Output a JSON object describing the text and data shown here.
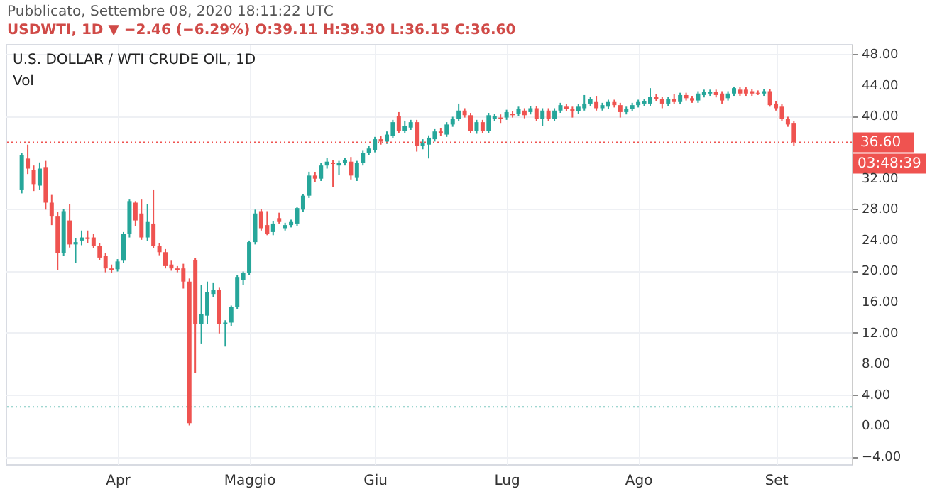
{
  "chart_data": {
    "type": "candlestick",
    "title": "U.S. DOLLAR / WTI CRUDE OIL, 1D",
    "subtitle": "USDWTI, 1D ▼ −2.46 (−6.29%) O:39.11 H:39.30 L:36.15 C:36.60",
    "annotations": [
      "Pubblicato, Settembre 08, 2020 18:11:22 UTC",
      "Vol",
      "03:48:39"
    ],
    "categories": [
      null,
      null,
      null,
      null,
      null,
      null,
      null,
      null,
      null,
      null,
      null,
      null,
      null,
      null,
      null,
      null,
      "Apr",
      null,
      null,
      null,
      null,
      null,
      null,
      null,
      null,
      null,
      null,
      null,
      null,
      null,
      null,
      null,
      null,
      null,
      null,
      null,
      null,
      null,
      "Maggio",
      null,
      null,
      null,
      null,
      null,
      null,
      null,
      null,
      null,
      null,
      null,
      null,
      null,
      null,
      null,
      null,
      null,
      null,
      null,
      null,
      "Giu",
      null,
      null,
      null,
      null,
      null,
      null,
      null,
      null,
      null,
      null,
      null,
      null,
      null,
      null,
      null,
      null,
      null,
      null,
      null,
      null,
      null,
      "Lug",
      null,
      null,
      null,
      null,
      null,
      null,
      null,
      null,
      null,
      null,
      null,
      null,
      null,
      null,
      null,
      null,
      null,
      null,
      null,
      null,
      null,
      "Ago",
      null,
      null,
      null,
      null,
      null,
      null,
      null,
      null,
      null,
      null,
      null,
      null,
      null,
      null,
      null,
      null,
      null,
      null,
      null,
      null,
      null,
      null,
      "Set",
      null,
      null,
      null
    ],
    "ohlc": [
      [
        30.5,
        35.2,
        30.0,
        34.9
      ],
      [
        34.5,
        36.3,
        32.5,
        33.2
      ],
      [
        33.0,
        33.6,
        30.3,
        31.2
      ],
      [
        31.0,
        34.0,
        30.5,
        33.2
      ],
      [
        33.4,
        34.2,
        27.9,
        28.8
      ],
      [
        28.8,
        29.8,
        25.9,
        27.0
      ],
      [
        27.0,
        27.6,
        20.1,
        22.3
      ],
      [
        22.3,
        28.0,
        21.9,
        27.7
      ],
      [
        26.5,
        28.6,
        23.0,
        23.4
      ],
      [
        23.4,
        24.2,
        21.0,
        23.7
      ],
      [
        23.9,
        25.2,
        23.3,
        24.3
      ],
      [
        24.3,
        25.2,
        23.6,
        24.1
      ],
      [
        24.3,
        24.8,
        22.9,
        23.2
      ],
      [
        23.2,
        23.6,
        21.4,
        21.7
      ],
      [
        21.9,
        22.3,
        19.8,
        20.3
      ],
      [
        20.3,
        20.8,
        19.7,
        20.1
      ],
      [
        20.2,
        21.5,
        19.9,
        21.2
      ],
      [
        21.3,
        25.0,
        21.0,
        24.8
      ],
      [
        24.8,
        29.2,
        24.3,
        29.0
      ],
      [
        28.8,
        29.0,
        25.8,
        26.5
      ],
      [
        27.4,
        29.2,
        24.0,
        24.3
      ],
      [
        24.3,
        28.6,
        23.8,
        26.3
      ],
      [
        26.1,
        30.5,
        22.9,
        23.2
      ],
      [
        23.2,
        23.6,
        22.0,
        22.4
      ],
      [
        22.4,
        22.8,
        20.3,
        20.6
      ],
      [
        20.8,
        21.3,
        20.0,
        20.3
      ],
      [
        20.3,
        20.6,
        19.8,
        20.1
      ],
      [
        20.3,
        20.9,
        17.7,
        18.6
      ],
      [
        18.6,
        19.0,
        0.0,
        0.3
      ],
      [
        21.4,
        21.6,
        6.8,
        13.1
      ],
      [
        13.1,
        18.2,
        10.6,
        14.4
      ],
      [
        14.2,
        18.6,
        13.1,
        17.2
      ],
      [
        17.0,
        18.4,
        16.6,
        17.5
      ],
      [
        17.5,
        17.8,
        11.9,
        13.1
      ],
      [
        13.1,
        13.6,
        10.2,
        13.3
      ],
      [
        13.3,
        15.5,
        12.8,
        15.3
      ],
      [
        15.3,
        19.4,
        15.0,
        19.2
      ],
      [
        18.8,
        19.9,
        18.2,
        19.7
      ],
      [
        19.7,
        23.9,
        19.4,
        23.7
      ],
      [
        23.7,
        27.9,
        23.4,
        27.4
      ],
      [
        27.7,
        28.0,
        25.2,
        25.5
      ],
      [
        25.9,
        27.7,
        24.6,
        24.8
      ],
      [
        25.0,
        26.4,
        24.6,
        26.1
      ],
      [
        26.8,
        27.5,
        26.1,
        26.3
      ],
      [
        25.5,
        26.2,
        25.2,
        25.9
      ],
      [
        25.9,
        26.6,
        25.6,
        26.3
      ],
      [
        26.1,
        28.3,
        25.8,
        28.1
      ],
      [
        27.9,
        29.9,
        27.6,
        29.7
      ],
      [
        29.7,
        32.8,
        29.4,
        32.3
      ],
      [
        32.3,
        32.7,
        31.5,
        31.9
      ],
      [
        31.9,
        33.9,
        31.6,
        33.6
      ],
      [
        33.6,
        34.6,
        33.2,
        34.1
      ],
      [
        33.9,
        34.3,
        30.8,
        33.8
      ],
      [
        33.6,
        34.2,
        32.4,
        33.9
      ],
      [
        33.9,
        34.6,
        33.6,
        34.3
      ],
      [
        34.1,
        34.7,
        31.8,
        32.3
      ],
      [
        32.0,
        34.2,
        31.6,
        33.9
      ],
      [
        33.9,
        35.5,
        33.6,
        35.2
      ],
      [
        35.2,
        36.1,
        34.9,
        35.8
      ],
      [
        35.6,
        37.3,
        35.3,
        37.0
      ],
      [
        37.0,
        37.4,
        36.3,
        36.7
      ],
      [
        36.7,
        38.0,
        36.4,
        37.6
      ],
      [
        37.4,
        39.5,
        37.1,
        39.2
      ],
      [
        40.0,
        40.5,
        37.8,
        38.1
      ],
      [
        38.1,
        39.4,
        37.8,
        38.7
      ],
      [
        38.5,
        39.5,
        38.2,
        39.2
      ],
      [
        39.2,
        39.5,
        35.4,
        36.1
      ],
      [
        36.1,
        37.0,
        35.7,
        36.5
      ],
      [
        36.3,
        37.5,
        34.5,
        37.2
      ],
      [
        37.0,
        38.3,
        36.7,
        38.0
      ],
      [
        38.0,
        38.4,
        37.4,
        37.8
      ],
      [
        37.6,
        39.2,
        37.3,
        38.9
      ],
      [
        38.9,
        39.9,
        38.6,
        39.6
      ],
      [
        39.6,
        41.6,
        39.3,
        40.7
      ],
      [
        40.7,
        41.0,
        39.8,
        40.1
      ],
      [
        40.1,
        40.4,
        37.8,
        38.1
      ],
      [
        38.1,
        39.5,
        37.7,
        39.2
      ],
      [
        39.2,
        39.5,
        37.8,
        38.1
      ],
      [
        38.1,
        40.4,
        37.8,
        40.1
      ],
      [
        39.6,
        40.3,
        39.3,
        40.0
      ],
      [
        39.8,
        40.2,
        39.1,
        39.6
      ],
      [
        39.8,
        40.8,
        39.5,
        40.5
      ],
      [
        40.3,
        40.6,
        39.8,
        40.1
      ],
      [
        40.3,
        41.2,
        40.0,
        40.9
      ],
      [
        40.7,
        41.0,
        39.7,
        40.1
      ],
      [
        40.5,
        41.3,
        40.2,
        41.0
      ],
      [
        41.0,
        41.3,
        39.3,
        39.6
      ],
      [
        39.6,
        41.0,
        38.7,
        40.7
      ],
      [
        40.7,
        41.0,
        39.3,
        39.6
      ],
      [
        39.6,
        41.0,
        39.3,
        40.7
      ],
      [
        40.7,
        41.7,
        40.4,
        41.4
      ],
      [
        41.2,
        41.5,
        40.6,
        40.9
      ],
      [
        40.9,
        41.2,
        39.8,
        40.6
      ],
      [
        40.6,
        41.5,
        40.3,
        41.2
      ],
      [
        41.0,
        42.7,
        40.7,
        41.6
      ],
      [
        41.6,
        42.5,
        41.3,
        42.2
      ],
      [
        41.8,
        42.6,
        40.7,
        41.0
      ],
      [
        41.0,
        41.7,
        40.7,
        41.4
      ],
      [
        41.2,
        42.1,
        40.9,
        41.8
      ],
      [
        41.8,
        42.1,
        41.1,
        41.4
      ],
      [
        41.4,
        41.7,
        39.8,
        40.5
      ],
      [
        40.5,
        41.2,
        40.2,
        40.9
      ],
      [
        40.9,
        41.7,
        40.6,
        41.4
      ],
      [
        41.4,
        42.1,
        41.1,
        41.8
      ],
      [
        41.6,
        42.2,
        41.3,
        41.9
      ],
      [
        41.6,
        43.6,
        41.3,
        42.5
      ],
      [
        42.5,
        42.8,
        41.9,
        42.2
      ],
      [
        42.2,
        42.5,
        41.0,
        41.6
      ],
      [
        41.6,
        42.5,
        41.3,
        42.2
      ],
      [
        42.2,
        42.8,
        41.5,
        41.8
      ],
      [
        41.8,
        43.0,
        41.5,
        42.7
      ],
      [
        42.7,
        43.0,
        42.0,
        42.3
      ],
      [
        42.3,
        42.6,
        41.7,
        42.0
      ],
      [
        42.0,
        43.2,
        41.7,
        42.9
      ],
      [
        42.7,
        43.4,
        42.4,
        43.1
      ],
      [
        42.9,
        43.4,
        42.6,
        43.1
      ],
      [
        43.1,
        43.4,
        42.4,
        42.7
      ],
      [
        42.9,
        43.2,
        41.6,
        42.0
      ],
      [
        42.3,
        43.2,
        42.0,
        42.9
      ],
      [
        42.9,
        43.8,
        42.6,
        43.6
      ],
      [
        43.4,
        43.7,
        42.6,
        42.9
      ],
      [
        43.4,
        43.7,
        42.6,
        42.9
      ],
      [
        43.2,
        43.5,
        42.6,
        42.9
      ],
      [
        43.0,
        43.3,
        42.7,
        42.9
      ],
      [
        42.9,
        43.5,
        42.6,
        43.2
      ],
      [
        43.2,
        43.5,
        41.2,
        41.4
      ],
      [
        41.6,
        41.9,
        40.7,
        41.0
      ],
      [
        41.2,
        41.5,
        39.3,
        39.6
      ],
      [
        39.6,
        39.9,
        38.6,
        38.9
      ],
      [
        39.11,
        39.3,
        36.15,
        36.6
      ]
    ],
    "colors": [
      "#26a69a",
      "#ef5350",
      "#ef5350",
      "#26a69a",
      "#ef5350",
      "#ef5350",
      "#ef5350",
      "#26a69a",
      "#ef5350",
      "#26a69a",
      "#26a69a",
      "#ef5350",
      "#ef5350",
      "#ef5350",
      "#ef5350",
      "#ef5350",
      "#26a69a",
      "#26a69a",
      "#26a69a",
      "#ef5350",
      "#ef5350",
      "#26a69a",
      "#ef5350",
      "#ef5350",
      "#ef5350",
      "#ef5350",
      "#ef5350",
      "#ef5350",
      "#ef5350",
      "#ef5350",
      "#26a69a",
      "#26a69a",
      "#26a69a",
      "#ef5350",
      "#26a69a",
      "#26a69a",
      "#26a69a",
      "#26a69a",
      "#26a69a",
      "#26a69a",
      "#ef5350",
      "#ef5350",
      "#26a69a",
      "#ef5350",
      "#26a69a",
      "#26a69a",
      "#26a69a",
      "#26a69a",
      "#26a69a",
      "#ef5350",
      "#26a69a",
      "#26a69a",
      "#ef5350",
      "#26a69a",
      "#26a69a",
      "#ef5350",
      "#26a69a",
      "#26a69a",
      "#26a69a",
      "#26a69a",
      "#ef5350",
      "#26a69a",
      "#26a69a",
      "#ef5350",
      "#26a69a",
      "#26a69a",
      "#ef5350",
      "#26a69a",
      "#26a69a",
      "#26a69a",
      "#ef5350",
      "#26a69a",
      "#26a69a",
      "#26a69a",
      "#ef5350",
      "#ef5350",
      "#26a69a",
      "#ef5350",
      "#26a69a",
      "#26a69a",
      "#ef5350",
      "#26a69a",
      "#ef5350",
      "#26a69a",
      "#ef5350",
      "#26a69a",
      "#ef5350",
      "#26a69a",
      "#ef5350",
      "#26a69a",
      "#26a69a",
      "#ef5350",
      "#ef5350",
      "#26a69a",
      "#26a69a",
      "#26a69a",
      "#ef5350",
      "#26a69a",
      "#26a69a",
      "#ef5350",
      "#ef5350",
      "#26a69a",
      "#26a69a",
      "#26a69a",
      "#26a69a",
      "#26a69a",
      "#ef5350",
      "#ef5350",
      "#26a69a",
      "#ef5350",
      "#26a69a",
      "#ef5350",
      "#ef5350",
      "#26a69a",
      "#26a69a",
      "#26a69a",
      "#ef5350",
      "#ef5350",
      "#26a69a",
      "#26a69a",
      "#ef5350",
      "#ef5350",
      "#ef5350",
      "#ef5350",
      "#26a69a",
      "#ef5350",
      "#ef5350",
      "#ef5350",
      "#ef5350",
      "#ef5350"
    ],
    "ylim": [
      -5,
      49.3
    ],
    "yticks": [
      {
        "value": -4,
        "label": "−4.00"
      },
      {
        "value": 0,
        "label": "0.00"
      },
      {
        "value": 4,
        "label": "4.00"
      },
      {
        "value": 8,
        "label": "8.00"
      },
      {
        "value": 12,
        "label": "12.00"
      },
      {
        "value": 16,
        "label": "16.00"
      },
      {
        "value": 20,
        "label": "20.00"
      },
      {
        "value": 24,
        "label": "24.00"
      },
      {
        "value": 28,
        "label": "28.00"
      },
      {
        "value": 32,
        "label": "32.00"
      },
      {
        "value": 40,
        "label": "40.00"
      },
      {
        "value": 44,
        "label": "44.00"
      },
      {
        "value": 48,
        "label": "48.00"
      }
    ],
    "ref_lines": [
      {
        "axis": "y",
        "value": 36.6,
        "label": "36.60",
        "color": "#ef5350",
        "line_style": "dotted"
      },
      {
        "axis": "y",
        "value": 2.4,
        "color": "#80c9c1",
        "line_style": "dotted"
      }
    ],
    "grid": true
  }
}
